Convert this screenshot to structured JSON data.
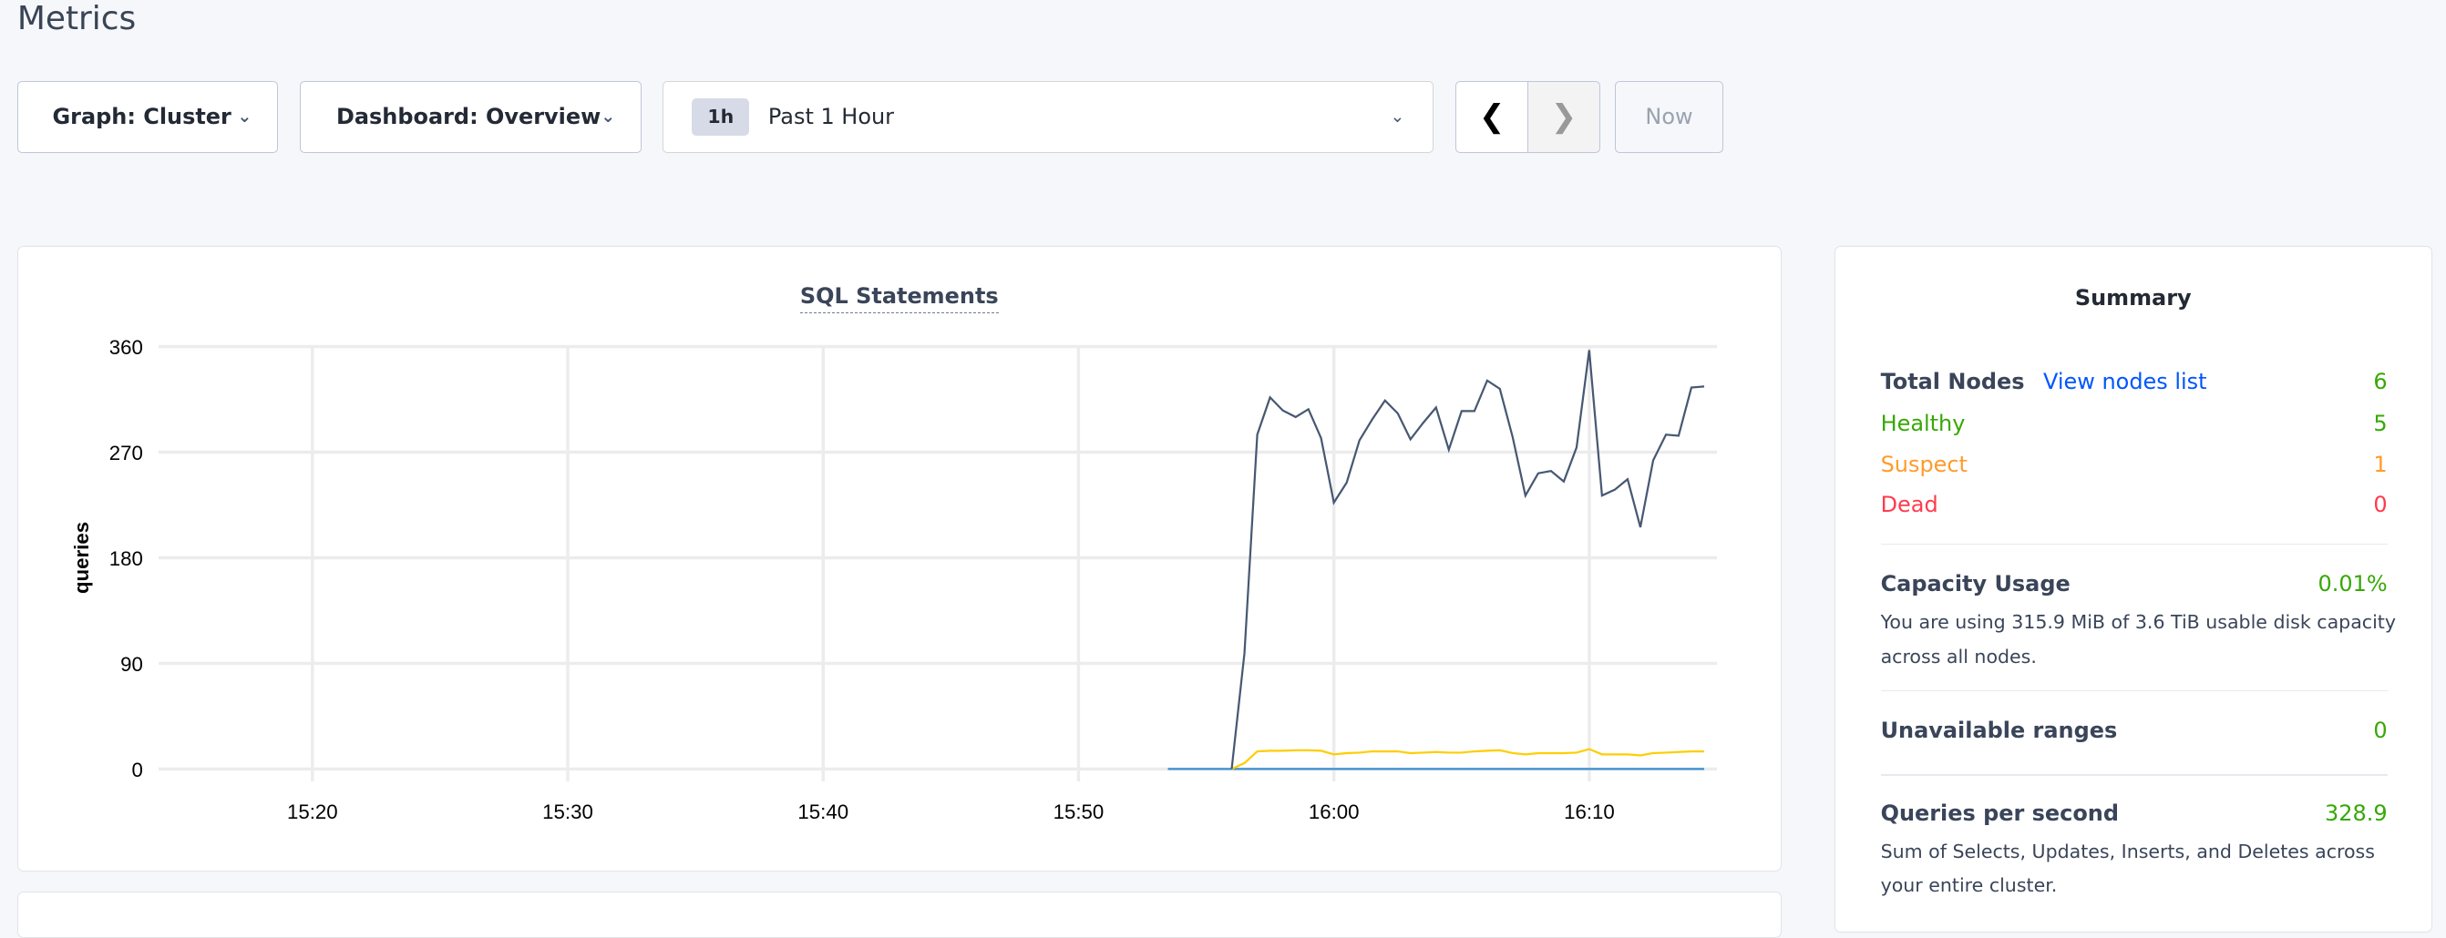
{
  "page_title": "Metrics",
  "controls": {
    "graph_select": "Graph: Cluster",
    "dashboard_select": "Dashboard: Overview",
    "time_badge": "1h",
    "time_range": "Past 1 Hour",
    "prev_icon": "chevron-left-icon",
    "next_icon": "chevron-right-icon",
    "now_label": "Now"
  },
  "summary": {
    "title": "Summary",
    "total_nodes_label": "Total Nodes",
    "view_nodes_link": "View nodes list",
    "total_nodes": "6",
    "healthy_label": "Healthy",
    "healthy": "5",
    "suspect_label": "Suspect",
    "suspect": "1",
    "dead_label": "Dead",
    "dead": "0",
    "capacity_label": "Capacity Usage",
    "capacity_value": "0.01%",
    "capacity_desc": "You are using 315.9 MiB of 3.6 TiB usable disk capacity across all nodes.",
    "unavailable_label": "Unavailable ranges",
    "unavailable_value": "0",
    "qps_label": "Queries per second",
    "qps_value": "328.9",
    "qps_desc": "Sum of Selects, Updates, Inserts, and Deletes across your entire cluster.",
    "colors": {
      "healthy": "#37a806",
      "suspect": "#ff9b2b",
      "dead": "#ff3b4e",
      "link": "#0055ff"
    }
  },
  "chart_data": {
    "type": "line",
    "title": "SQL Statements",
    "ylabel": "queries",
    "xlabel": "",
    "ylim": [
      0,
      360
    ],
    "xlim": [
      "15:14:50",
      "16:15:00"
    ],
    "yticks": [
      "0",
      "90",
      "180",
      "270",
      "360"
    ],
    "xticks": [
      "15:20",
      "15:30",
      "15:40",
      "15:50",
      "16:00",
      "16:10"
    ],
    "grid": true,
    "series": [
      {
        "color": "#475872",
        "start": "15:56:00",
        "step_seconds": 30,
        "values": [
          0,
          98.8,
          285,
          316.7,
          305.6,
          300,
          306.6,
          282,
          227,
          244,
          280,
          298,
          314,
          303,
          281,
          295,
          308,
          272,
          305,
          305,
          331,
          324,
          283,
          233,
          252,
          254,
          245,
          274,
          357,
          233,
          238,
          247,
          206,
          263,
          285,
          284,
          325,
          326
        ]
      },
      {
        "color": "#ffcd02",
        "start": "15:56:00",
        "step_seconds": 30,
        "values": [
          0,
          5,
          15,
          15.5,
          15.5,
          16,
          16,
          15.5,
          12.5,
          13.5,
          14,
          15,
          15,
          15,
          13.5,
          14,
          14.5,
          14,
          14,
          15,
          15.5,
          16,
          13.5,
          12.5,
          13.5,
          13.5,
          13.5,
          14,
          17,
          12.5,
          12.5,
          12.5,
          11.5,
          13.5,
          14,
          14.5,
          15,
          15
        ]
      },
      {
        "color": "#3a8fd0",
        "start": "15:53:30",
        "step_seconds": 1260,
        "values": [
          0,
          0
        ]
      }
    ]
  }
}
